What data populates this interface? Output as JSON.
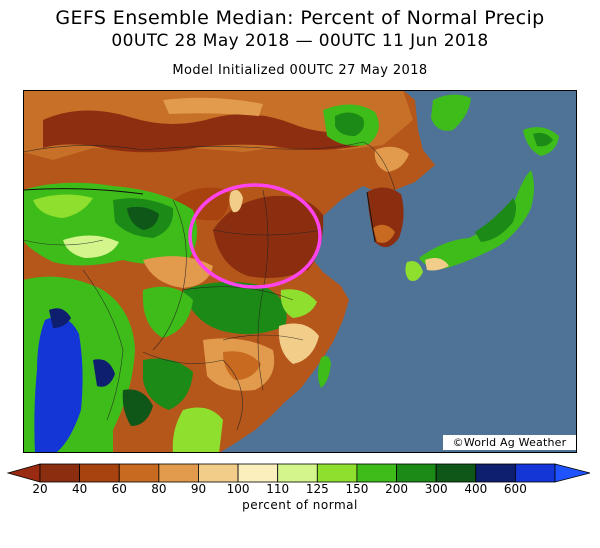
{
  "header": {
    "title": "GEFS Ensemble Median: Percent of Normal Precip",
    "period": "00UTC 28 May 2018 — 00UTC 11 Jun 2018",
    "init": "Model Initialized 00UTC 27 May 2018"
  },
  "credit": "©World Ag Weather",
  "map": {
    "region": "East Asia",
    "ocean_color": "#4f7396",
    "highlight_color": "#ff44ee",
    "highlight": "dry area in north-central China"
  },
  "legend": {
    "unit": "percent of normal",
    "ticks": [
      "20",
      "40",
      "60",
      "80",
      "90",
      "100",
      "110",
      "125",
      "150",
      "200",
      "300",
      "400",
      "600"
    ],
    "colors": [
      "#8b2e10",
      "#a8430f",
      "#c86a1f",
      "#e29b4c",
      "#f2cd8a",
      "#fbefbe",
      "#d3f58c",
      "#8fdf2e",
      "#3ebc1a",
      "#1c8a16",
      "#0e5718",
      "#0d1f6e",
      "#1436d6"
    ],
    "under_color": "#9a2a12",
    "over_color": "#1f53ff"
  }
}
